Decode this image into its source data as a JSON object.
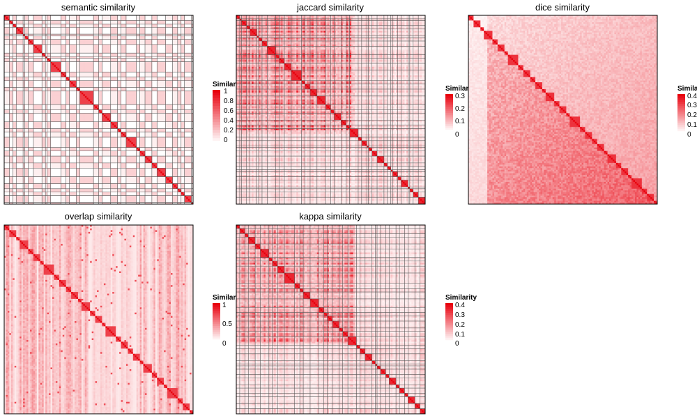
{
  "chart_data": [
    {
      "type": "heatmap",
      "title": "semantic similarity",
      "legend_title": "Similarity",
      "legend_ticks": [
        "1",
        "0.8",
        "0.6",
        "0.4",
        "0.2",
        "0"
      ],
      "value_range": [
        0,
        1
      ],
      "diagonal_value": 1,
      "low_color": "#ffffff",
      "high_color": "#e8000d",
      "grid_lines": true,
      "n_terms": 110
    },
    {
      "type": "heatmap",
      "title": "jaccard similarity",
      "legend_title": "Similarity",
      "legend_ticks": [
        "0.3",
        "0.2",
        "0.1",
        "0"
      ],
      "value_range": [
        0,
        0.3
      ],
      "diagonal_value": 1,
      "low_color": "#ffffff",
      "high_color": "#e8000d",
      "grid_lines": true,
      "n_terms": 110
    },
    {
      "type": "heatmap",
      "title": "dice similarity",
      "legend_title": "Similarity",
      "legend_ticks": [
        "0.4",
        "0.3",
        "0.2",
        "0.1",
        "0"
      ],
      "value_range": [
        0,
        0.4
      ],
      "diagonal_value": 1,
      "low_color": "#ffffff",
      "high_color": "#e8000d",
      "grid_lines": false,
      "n_terms": 110
    },
    {
      "type": "heatmap",
      "title": "overlap similarity",
      "legend_title": "Similarity",
      "legend_ticks": [
        "1",
        "0.5",
        "0"
      ],
      "value_range": [
        0,
        1
      ],
      "diagonal_value": 1,
      "low_color": "#ffffff",
      "high_color": "#e8000d",
      "grid_lines": false,
      "n_terms": 110
    },
    {
      "type": "heatmap",
      "title": "kappa similarity",
      "legend_title": "Similarity",
      "legend_ticks": [
        "0.4",
        "0.3",
        "0.2",
        "0.1",
        "0"
      ],
      "value_range": [
        0,
        0.4
      ],
      "diagonal_value": 1,
      "low_color": "#ffffff",
      "high_color": "#e8000d",
      "grid_lines": true,
      "n_terms": 110
    }
  ]
}
